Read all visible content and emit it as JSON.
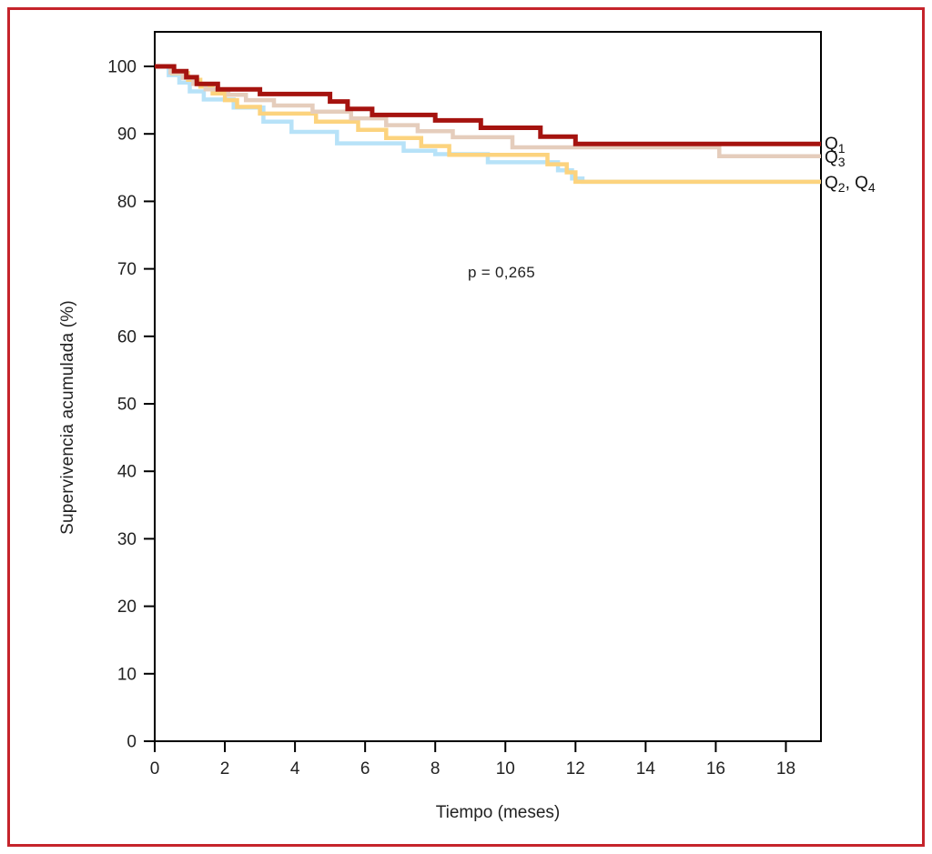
{
  "figure": {
    "frame_color": "#c5242b",
    "background": "#ffffff",
    "axis_color": "#000000"
  },
  "chart_data": {
    "type": "line",
    "subtype": "kaplan-meier-step",
    "title": "",
    "xlabel": "Tiempo (meses)",
    "ylabel": "Supervivencia acumulada (%)",
    "annotation": "p = 0,265",
    "xlim": [
      0,
      19
    ],
    "ylim": [
      0,
      100
    ],
    "x_ticks": [
      0,
      2,
      4,
      6,
      8,
      10,
      12,
      14,
      16,
      18
    ],
    "y_ticks": [
      0,
      10,
      20,
      30,
      40,
      50,
      60,
      70,
      80,
      90,
      100
    ],
    "grid": false,
    "legend_position": "right-of-plot",
    "series": [
      {
        "name": "Q4",
        "color": "#b7e2f8",
        "line_width": 4.5,
        "points": [
          [
            0,
            100
          ],
          [
            0.4,
            98.7
          ],
          [
            0.7,
            97.6
          ],
          [
            1.0,
            96.3
          ],
          [
            1.4,
            95.1
          ],
          [
            2.25,
            93.9
          ],
          [
            3.1,
            91.8
          ],
          [
            3.9,
            90.3
          ],
          [
            5.2,
            88.6
          ],
          [
            7.1,
            87.5
          ],
          [
            8.0,
            87.0
          ],
          [
            9.5,
            85.8
          ],
          [
            11.5,
            84.6
          ],
          [
            11.9,
            83.4
          ],
          [
            12.2,
            82.9
          ]
        ]
      },
      {
        "name": "Q2",
        "color": "#fcd37e",
        "line_width": 4.5,
        "points": [
          [
            0,
            100
          ],
          [
            0.5,
            99.0
          ],
          [
            0.95,
            98.0
          ],
          [
            1.3,
            97.0
          ],
          [
            1.65,
            96.0
          ],
          [
            2.0,
            95.0
          ],
          [
            2.35,
            94.0
          ],
          [
            3.0,
            93.0
          ],
          [
            4.6,
            91.8
          ],
          [
            5.8,
            90.6
          ],
          [
            6.6,
            89.4
          ],
          [
            7.6,
            88.2
          ],
          [
            8.4,
            86.9
          ],
          [
            11.2,
            85.5
          ],
          [
            11.75,
            84.3
          ],
          [
            12.0,
            82.9
          ]
        ]
      },
      {
        "name": "Q3",
        "color": "#e5cdbc",
        "line_width": 4.5,
        "points": [
          [
            0,
            100
          ],
          [
            0.45,
            99.1
          ],
          [
            0.8,
            98.3
          ],
          [
            1.1,
            97.4
          ],
          [
            1.45,
            96.6
          ],
          [
            2.1,
            95.8
          ],
          [
            2.6,
            95.0
          ],
          [
            3.4,
            94.2
          ],
          [
            4.5,
            93.3
          ],
          [
            5.6,
            92.3
          ],
          [
            6.6,
            91.3
          ],
          [
            7.5,
            90.4
          ],
          [
            8.5,
            89.5
          ],
          [
            10.2,
            88.0
          ],
          [
            16.1,
            86.7
          ]
        ]
      },
      {
        "name": "Q1",
        "color": "#a5130f",
        "line_width": 5,
        "points": [
          [
            0,
            100
          ],
          [
            0.55,
            99.3
          ],
          [
            0.9,
            98.4
          ],
          [
            1.2,
            97.4
          ],
          [
            1.8,
            96.6
          ],
          [
            3.0,
            95.9
          ],
          [
            5.0,
            94.8
          ],
          [
            5.5,
            93.7
          ],
          [
            6.2,
            92.8
          ],
          [
            8.0,
            92.0
          ],
          [
            9.3,
            90.9
          ],
          [
            11.0,
            89.6
          ],
          [
            12.0,
            88.5
          ]
        ]
      }
    ],
    "curve_labels": [
      {
        "id": "q1",
        "value": 88.5,
        "segments": [
          [
            "t",
            "Q"
          ],
          [
            "s",
            "1"
          ]
        ]
      },
      {
        "id": "q3",
        "value": 86.5,
        "segments": [
          [
            "t",
            "Q"
          ],
          [
            "s",
            "3"
          ]
        ]
      },
      {
        "id": "q2-q4",
        "value": 82.7,
        "segments": [
          [
            "t",
            "Q"
          ],
          [
            "s",
            "2"
          ],
          [
            "t",
            ", Q"
          ],
          [
            "s",
            "4"
          ]
        ]
      }
    ]
  }
}
